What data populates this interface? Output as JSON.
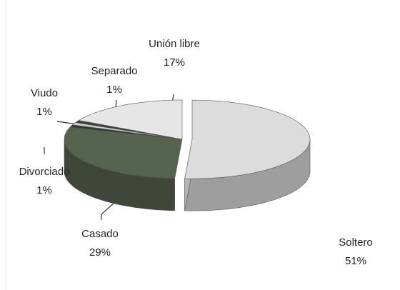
{
  "chart_data": {
    "type": "pie",
    "categories": [
      "Soltero",
      "Casado",
      "Divorciado",
      "Viudo",
      "Separado",
      "Unión libre"
    ],
    "values": [
      51,
      29,
      1,
      1,
      1,
      17
    ],
    "value_labels": [
      "51%",
      "29%",
      "1%",
      "1%",
      "1%",
      "17%"
    ],
    "colors": [
      "#dcdcdc",
      "#56634f",
      "#2f3b2c",
      "#cfcfcf",
      "#3a4636",
      "#e6e6e6"
    ]
  }
}
